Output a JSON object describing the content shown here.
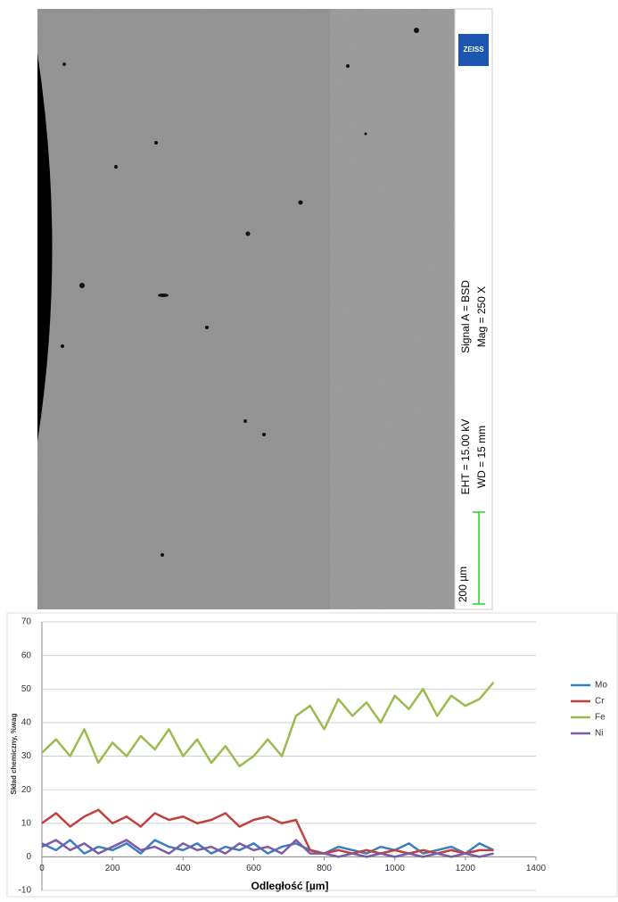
{
  "micrograph": {
    "logo": "ZEISS",
    "signal": "Signal A = BSD",
    "mag": "Mag =  250 X",
    "eht": "EHT = 15.00 kV",
    "wd": "WD =  15 mm",
    "scale": "200 µm"
  },
  "chart_data": {
    "type": "line",
    "x_label": "Odległość [µm]",
    "y_label": "Skład chemiczny, %wag",
    "x": [
      0,
      40,
      80,
      120,
      160,
      200,
      240,
      280,
      320,
      360,
      400,
      440,
      480,
      520,
      560,
      600,
      640,
      680,
      720,
      760,
      800,
      840,
      880,
      920,
      960,
      1000,
      1040,
      1080,
      1120,
      1160,
      1200,
      1240,
      1280
    ],
    "series": [
      {
        "name": "Mo",
        "color": "#3c7fc0",
        "values": [
          4,
          2,
          5,
          1,
          3,
          2,
          4,
          1,
          5,
          3,
          2,
          4,
          1,
          3,
          2,
          4,
          1,
          3,
          4,
          2,
          1,
          3,
          2,
          1,
          3,
          2,
          4,
          1,
          2,
          3,
          1,
          4,
          2
        ]
      },
      {
        "name": "Cr",
        "color": "#c0413d",
        "values": [
          10,
          13,
          9,
          12,
          14,
          10,
          12,
          9,
          13,
          11,
          12,
          10,
          11,
          13,
          9,
          11,
          12,
          10,
          11,
          2,
          1,
          2,
          1,
          2,
          1,
          2,
          1,
          2,
          1,
          2,
          1,
          2,
          2
        ]
      },
      {
        "name": "Fe",
        "color": "#9bbb4f",
        "values": [
          31,
          35,
          30,
          38,
          28,
          34,
          30,
          36,
          32,
          38,
          30,
          35,
          28,
          33,
          27,
          30,
          35,
          30,
          42,
          45,
          38,
          47,
          42,
          46,
          40,
          48,
          44,
          50,
          42,
          48,
          45,
          47,
          52
        ]
      },
      {
        "name": "Ni",
        "color": "#7d5ba6",
        "values": [
          3,
          5,
          2,
          4,
          1,
          3,
          5,
          2,
          3,
          1,
          4,
          2,
          3,
          1,
          4,
          2,
          3,
          1,
          5,
          1,
          1,
          0,
          1,
          0,
          1,
          0,
          1,
          0,
          1,
          0,
          1,
          0,
          1
        ]
      }
    ],
    "xlim": [
      0,
      1400
    ],
    "xticks": [
      0,
      200,
      400,
      600,
      800,
      1000,
      1200,
      1400
    ],
    "ylim": [
      -10,
      70
    ],
    "yticks": [
      -10,
      0,
      10,
      20,
      30,
      40,
      50,
      60,
      70
    ],
    "grid": true,
    "legend": "right"
  }
}
